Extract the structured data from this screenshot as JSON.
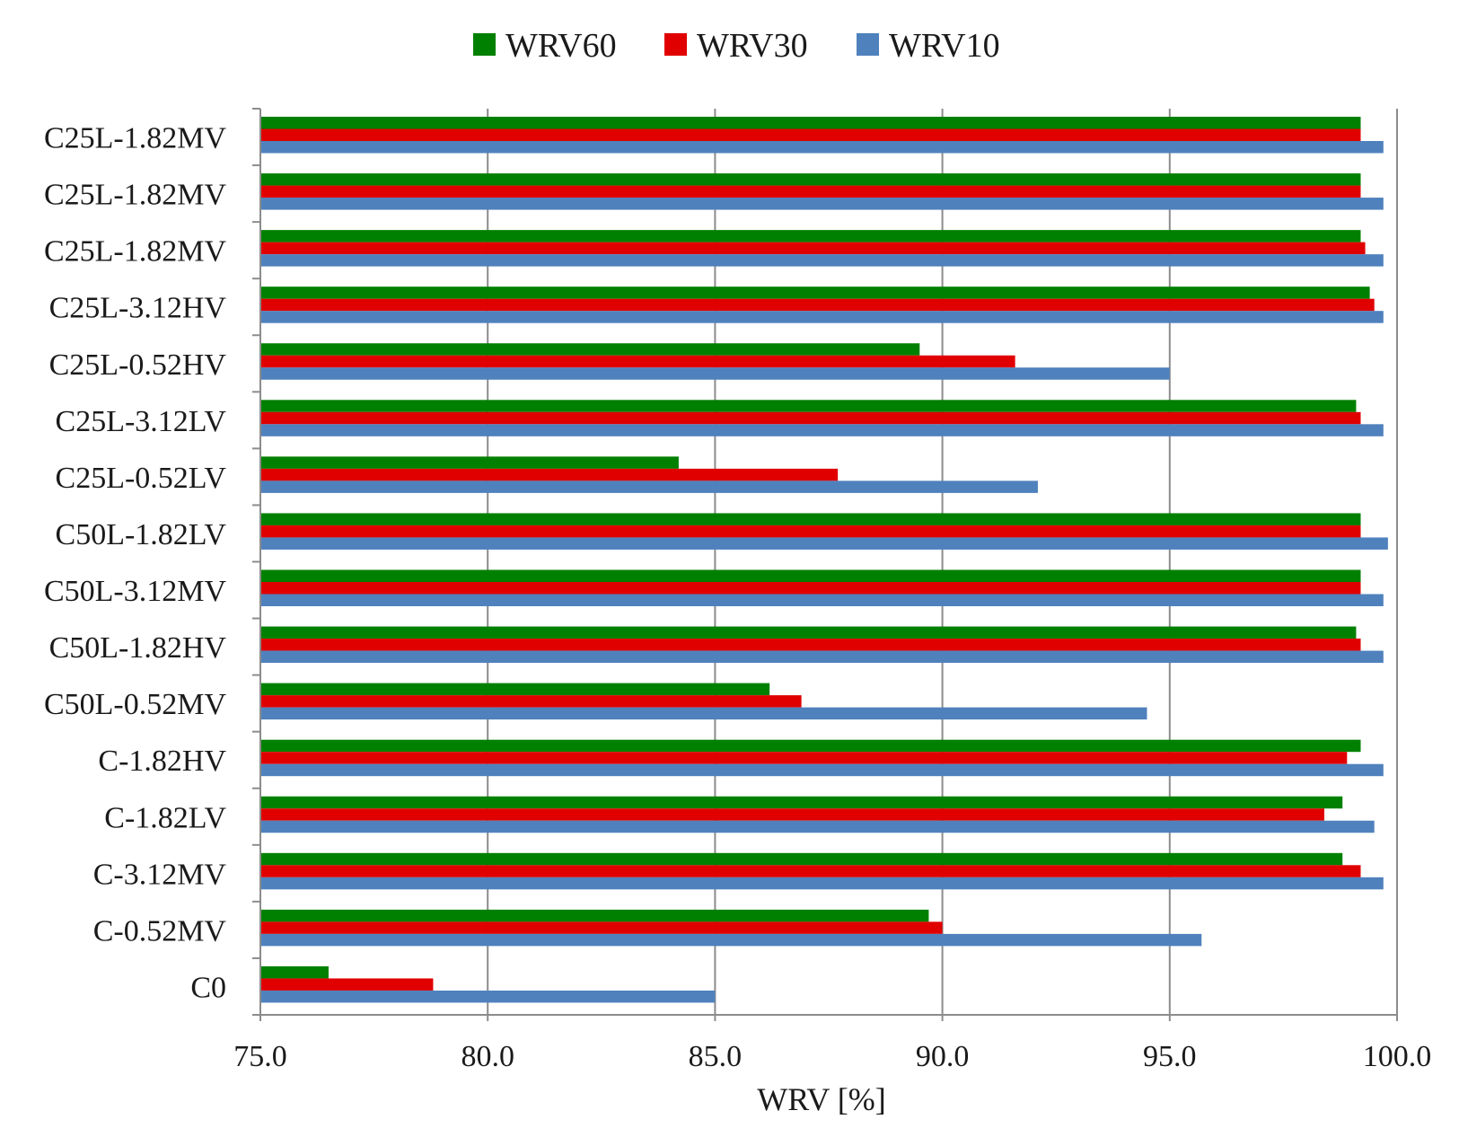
{
  "chart_data": {
    "type": "bar",
    "orientation": "horizontal",
    "title": "",
    "xlabel": "WRV [%]",
    "ylabel": "",
    "xlim": [
      75.0,
      100.0
    ],
    "xticks": [
      "75.0",
      "80.0",
      "85.0",
      "90.0",
      "95.0",
      "100.0"
    ],
    "grid": "vertical",
    "legend_position": "top",
    "categories": [
      "C25L-1.82MV",
      "C25L-1.82MV",
      "C25L-1.82MV",
      "C25L-3.12HV",
      "C25L-0.52HV",
      "C25L-3.12LV",
      "C25L-0.52LV",
      "C50L-1.82LV",
      "C50L-3.12MV",
      "C50L-1.82HV",
      "C50L-0.52MV",
      "C-1.82HV",
      "C-1.82LV",
      "C-3.12MV",
      "C-0.52MV",
      "C0"
    ],
    "series": [
      {
        "name": "WRV60",
        "color": "#008000",
        "values": [
          99.2,
          99.2,
          99.2,
          99.4,
          89.5,
          99.1,
          84.2,
          99.2,
          99.2,
          99.1,
          86.2,
          99.2,
          98.8,
          98.8,
          89.7,
          76.5
        ]
      },
      {
        "name": "WRV30",
        "color": "#e00000",
        "values": [
          99.2,
          99.2,
          99.3,
          99.5,
          91.6,
          99.2,
          87.7,
          99.2,
          99.2,
          99.2,
          86.9,
          98.9,
          98.4,
          99.2,
          90.0,
          78.8
        ]
      },
      {
        "name": "WRV10",
        "color": "#4f81bd",
        "values": [
          99.7,
          99.7,
          99.7,
          99.7,
          95.0,
          99.7,
          92.1,
          99.8,
          99.7,
          99.7,
          94.5,
          99.7,
          99.5,
          99.7,
          95.7,
          85.0
        ]
      }
    ]
  }
}
